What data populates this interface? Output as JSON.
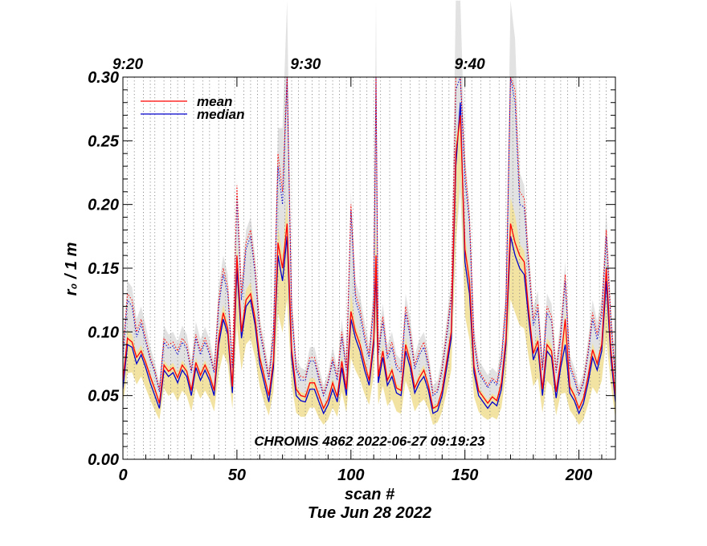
{
  "chart_data": {
    "type": "line",
    "title": "CHROMIS 4862 2022-06-27 09:19:23",
    "xlabel": "scan #",
    "ylabel": "r₀ / 1 m",
    "date_label": "Tue Jun 28 2022",
    "xlim": [
      0,
      216
    ],
    "ylim": [
      0.0,
      0.3
    ],
    "x_ticks": [
      0,
      50,
      100,
      150,
      200
    ],
    "x_tick_labels": [
      "0",
      "50",
      "100",
      "150",
      "200"
    ],
    "y_ticks": [
      0.0,
      0.05,
      0.1,
      0.15,
      0.2,
      0.25,
      0.3
    ],
    "y_tick_labels": [
      "0.00",
      "0.05",
      "0.10",
      "0.15",
      "0.20",
      "0.25",
      "0.30"
    ],
    "time_axis": [
      {
        "label": "9:20",
        "scan": 0
      },
      {
        "label": "9:30",
        "scan": 78
      },
      {
        "label": "9:40",
        "scan": 150
      }
    ],
    "vertical_grid_scans": [
      2,
      5,
      9,
      12,
      14,
      18,
      21,
      24,
      27,
      31,
      35,
      38,
      42,
      45,
      49,
      53,
      56,
      59,
      62,
      65,
      68,
      71,
      74,
      77,
      80,
      83,
      86,
      89,
      92,
      95,
      98,
      101,
      104,
      107,
      110,
      113,
      117,
      122,
      126,
      130,
      133,
      137,
      140,
      143,
      146,
      150,
      153,
      157,
      161,
      165,
      168,
      171,
      174,
      177,
      181,
      185,
      189,
      192,
      195,
      199,
      202,
      205,
      209,
      212
    ],
    "legend": {
      "placement": "top-left",
      "entries": [
        {
          "name": "mean",
          "color": "#ff0000"
        },
        {
          "name": "median",
          "color": "#0000cc"
        }
      ]
    },
    "key_points": {
      "x": [
        0,
        2,
        4,
        6,
        8,
        10,
        12,
        14,
        16,
        18,
        20,
        22,
        24,
        26,
        28,
        30,
        32,
        34,
        36,
        38,
        40,
        42,
        44,
        46,
        48,
        50,
        52,
        54,
        56,
        58,
        60,
        62,
        64,
        66,
        68,
        70,
        72,
        74,
        76,
        78,
        80,
        82,
        84,
        86,
        88,
        90,
        92,
        94,
        96,
        98,
        100,
        102,
        104,
        106,
        108,
        110,
        111,
        112,
        114,
        116,
        118,
        120,
        122,
        124,
        126,
        128,
        130,
        132,
        134,
        136,
        138,
        140,
        142,
        144,
        146,
        148,
        150,
        152,
        154,
        156,
        158,
        160,
        162,
        164,
        166,
        168,
        170,
        172,
        174,
        176,
        178,
        180,
        182,
        184,
        186,
        188,
        190,
        192,
        194,
        196,
        198,
        200,
        202,
        204,
        206,
        208,
        210,
        212,
        214,
        216
      ],
      "median": [
        0.055,
        0.09,
        0.088,
        0.075,
        0.082,
        0.072,
        0.06,
        0.05,
        0.04,
        0.07,
        0.065,
        0.068,
        0.06,
        0.07,
        0.065,
        0.05,
        0.072,
        0.062,
        0.07,
        0.062,
        0.05,
        0.09,
        0.11,
        0.098,
        0.052,
        0.15,
        0.095,
        0.12,
        0.125,
        0.105,
        0.075,
        0.06,
        0.045,
        0.072,
        0.16,
        0.14,
        0.175,
        0.08,
        0.05,
        0.046,
        0.045,
        0.055,
        0.055,
        0.045,
        0.036,
        0.043,
        0.055,
        0.045,
        0.072,
        0.05,
        0.11,
        0.095,
        0.085,
        0.07,
        0.058,
        0.09,
        0.15,
        0.06,
        0.08,
        0.058,
        0.065,
        0.052,
        0.05,
        0.085,
        0.072,
        0.052,
        0.06,
        0.065,
        0.054,
        0.036,
        0.038,
        0.05,
        0.072,
        0.095,
        0.23,
        0.28,
        0.155,
        0.13,
        0.068,
        0.05,
        0.045,
        0.04,
        0.045,
        0.042,
        0.055,
        0.09,
        0.175,
        0.16,
        0.15,
        0.145,
        0.11,
        0.078,
        0.088,
        0.05,
        0.085,
        0.08,
        0.048,
        0.072,
        0.09,
        0.052,
        0.046,
        0.036,
        0.044,
        0.06,
        0.08,
        0.07,
        0.085,
        0.14,
        0.08,
        0.045
      ],
      "mean": [
        0.062,
        0.095,
        0.092,
        0.08,
        0.085,
        0.076,
        0.065,
        0.055,
        0.044,
        0.074,
        0.069,
        0.072,
        0.064,
        0.074,
        0.069,
        0.054,
        0.076,
        0.066,
        0.074,
        0.066,
        0.054,
        0.095,
        0.115,
        0.102,
        0.057,
        0.16,
        0.1,
        0.125,
        0.13,
        0.11,
        0.08,
        0.065,
        0.05,
        0.077,
        0.17,
        0.15,
        0.185,
        0.086,
        0.055,
        0.05,
        0.049,
        0.06,
        0.06,
        0.05,
        0.04,
        0.047,
        0.06,
        0.049,
        0.077,
        0.055,
        0.116,
        0.1,
        0.09,
        0.075,
        0.062,
        0.095,
        0.16,
        0.065,
        0.085,
        0.062,
        0.07,
        0.056,
        0.054,
        0.09,
        0.077,
        0.056,
        0.064,
        0.07,
        0.058,
        0.04,
        0.042,
        0.054,
        0.077,
        0.1,
        0.24,
        0.27,
        0.165,
        0.14,
        0.073,
        0.054,
        0.049,
        0.044,
        0.049,
        0.046,
        0.06,
        0.095,
        0.185,
        0.17,
        0.16,
        0.155,
        0.116,
        0.083,
        0.093,
        0.055,
        0.09,
        0.085,
        0.053,
        0.077,
        0.11,
        0.057,
        0.05,
        0.04,
        0.048,
        0.065,
        0.086,
        0.075,
        0.09,
        0.15,
        0.086,
        0.05
      ],
      "mean_upper": [
        0.085,
        0.13,
        0.125,
        0.1,
        0.11,
        0.095,
        0.08,
        0.07,
        0.055,
        0.095,
        0.09,
        0.092,
        0.085,
        0.095,
        0.09,
        0.07,
        0.098,
        0.085,
        0.095,
        0.085,
        0.07,
        0.125,
        0.15,
        0.135,
        0.075,
        0.215,
        0.13,
        0.17,
        0.18,
        0.15,
        0.105,
        0.085,
        0.065,
        0.1,
        0.24,
        0.21,
        0.3,
        0.12,
        0.072,
        0.065,
        0.064,
        0.08,
        0.08,
        0.065,
        0.052,
        0.062,
        0.08,
        0.065,
        0.1,
        0.072,
        0.2,
        0.13,
        0.118,
        0.098,
        0.082,
        0.125,
        0.3,
        0.085,
        0.112,
        0.082,
        0.092,
        0.074,
        0.07,
        0.12,
        0.1,
        0.074,
        0.085,
        0.092,
        0.076,
        0.052,
        0.055,
        0.072,
        0.1,
        0.13,
        0.3,
        0.3,
        0.23,
        0.19,
        0.095,
        0.07,
        0.064,
        0.058,
        0.064,
        0.06,
        0.08,
        0.125,
        0.3,
        0.29,
        0.21,
        0.205,
        0.155,
        0.11,
        0.122,
        0.072,
        0.12,
        0.112,
        0.07,
        0.1,
        0.145,
        0.075,
        0.065,
        0.052,
        0.062,
        0.085,
        0.115,
        0.098,
        0.118,
        0.18,
        0.112,
        0.065
      ],
      "median_upper": [
        0.08,
        0.125,
        0.12,
        0.096,
        0.106,
        0.092,
        0.078,
        0.068,
        0.053,
        0.092,
        0.087,
        0.089,
        0.082,
        0.092,
        0.087,
        0.068,
        0.095,
        0.082,
        0.092,
        0.082,
        0.068,
        0.12,
        0.145,
        0.13,
        0.072,
        0.205,
        0.125,
        0.165,
        0.175,
        0.145,
        0.1,
        0.082,
        0.062,
        0.096,
        0.23,
        0.2,
        0.3,
        0.115,
        0.07,
        0.062,
        0.062,
        0.077,
        0.077,
        0.062,
        0.05,
        0.06,
        0.077,
        0.062,
        0.096,
        0.07,
        0.195,
        0.125,
        0.113,
        0.094,
        0.079,
        0.12,
        0.3,
        0.082,
        0.108,
        0.079,
        0.088,
        0.071,
        0.068,
        0.115,
        0.096,
        0.071,
        0.082,
        0.088,
        0.073,
        0.05,
        0.053,
        0.07,
        0.096,
        0.125,
        0.29,
        0.3,
        0.22,
        0.185,
        0.092,
        0.068,
        0.062,
        0.056,
        0.062,
        0.058,
        0.077,
        0.12,
        0.3,
        0.28,
        0.2,
        0.198,
        0.15,
        0.105,
        0.118,
        0.07,
        0.115,
        0.108,
        0.068,
        0.096,
        0.14,
        0.072,
        0.062,
        0.05,
        0.06,
        0.082,
        0.11,
        0.094,
        0.112,
        0.175,
        0.108,
        0.062
      ],
      "band_upper": [
        0.09,
        0.14,
        0.135,
        0.11,
        0.12,
        0.105,
        0.088,
        0.076,
        0.06,
        0.105,
        0.098,
        0.1,
        0.092,
        0.105,
        0.098,
        0.078,
        0.108,
        0.094,
        0.104,
        0.094,
        0.078,
        0.135,
        0.16,
        0.145,
        0.082,
        0.22,
        0.14,
        0.18,
        0.19,
        0.16,
        0.112,
        0.092,
        0.072,
        0.11,
        0.26,
        0.26,
        0.36,
        0.13,
        0.08,
        0.072,
        0.07,
        0.088,
        0.088,
        0.072,
        0.058,
        0.068,
        0.088,
        0.072,
        0.11,
        0.08,
        0.21,
        0.14,
        0.128,
        0.108,
        0.09,
        0.138,
        0.36,
        0.092,
        0.122,
        0.09,
        0.1,
        0.082,
        0.078,
        0.13,
        0.11,
        0.082,
        0.094,
        0.1,
        0.084,
        0.058,
        0.062,
        0.08,
        0.11,
        0.14,
        0.36,
        0.36,
        0.24,
        0.2,
        0.104,
        0.078,
        0.072,
        0.066,
        0.072,
        0.068,
        0.088,
        0.135,
        0.36,
        0.33,
        0.225,
        0.215,
        0.165,
        0.12,
        0.132,
        0.08,
        0.13,
        0.122,
        0.078,
        0.11,
        0.155,
        0.082,
        0.072,
        0.058,
        0.068,
        0.094,
        0.125,
        0.108,
        0.128,
        0.195,
        0.122,
        0.072
      ],
      "band_lower": [
        0.05,
        0.07,
        0.07,
        0.062,
        0.066,
        0.058,
        0.05,
        0.042,
        0.034,
        0.058,
        0.052,
        0.055,
        0.048,
        0.056,
        0.052,
        0.04,
        0.058,
        0.05,
        0.056,
        0.05,
        0.04,
        0.07,
        0.085,
        0.076,
        0.043,
        0.11,
        0.072,
        0.092,
        0.096,
        0.082,
        0.06,
        0.048,
        0.038,
        0.056,
        0.12,
        0.105,
        0.13,
        0.062,
        0.04,
        0.036,
        0.036,
        0.044,
        0.044,
        0.036,
        0.03,
        0.034,
        0.044,
        0.036,
        0.056,
        0.04,
        0.082,
        0.072,
        0.065,
        0.054,
        0.045,
        0.068,
        0.11,
        0.046,
        0.06,
        0.044,
        0.05,
        0.04,
        0.038,
        0.064,
        0.054,
        0.04,
        0.046,
        0.05,
        0.042,
        0.03,
        0.032,
        0.04,
        0.056,
        0.072,
        0.17,
        0.21,
        0.118,
        0.1,
        0.052,
        0.04,
        0.036,
        0.034,
        0.036,
        0.034,
        0.044,
        0.07,
        0.13,
        0.12,
        0.11,
        0.108,
        0.082,
        0.06,
        0.066,
        0.04,
        0.064,
        0.06,
        0.038,
        0.054,
        0.068,
        0.042,
        0.036,
        0.03,
        0.034,
        0.046,
        0.06,
        0.054,
        0.064,
        0.1,
        0.062,
        0.036
      ]
    },
    "series": [
      {
        "name": "mean",
        "color": "#ff0000",
        "style": "solid",
        "key": "mean"
      },
      {
        "name": "median",
        "color": "#0000cc",
        "style": "solid",
        "key": "median"
      },
      {
        "name": "mean upper",
        "color": "#ff0000",
        "style": "dotted",
        "key": "mean_upper"
      },
      {
        "name": "median upper",
        "color": "#0000cc",
        "style": "dotted",
        "key": "median_upper"
      }
    ],
    "band_colors": {
      "gray": "#e2e2e2",
      "yellow": "#f2e3a2"
    }
  }
}
